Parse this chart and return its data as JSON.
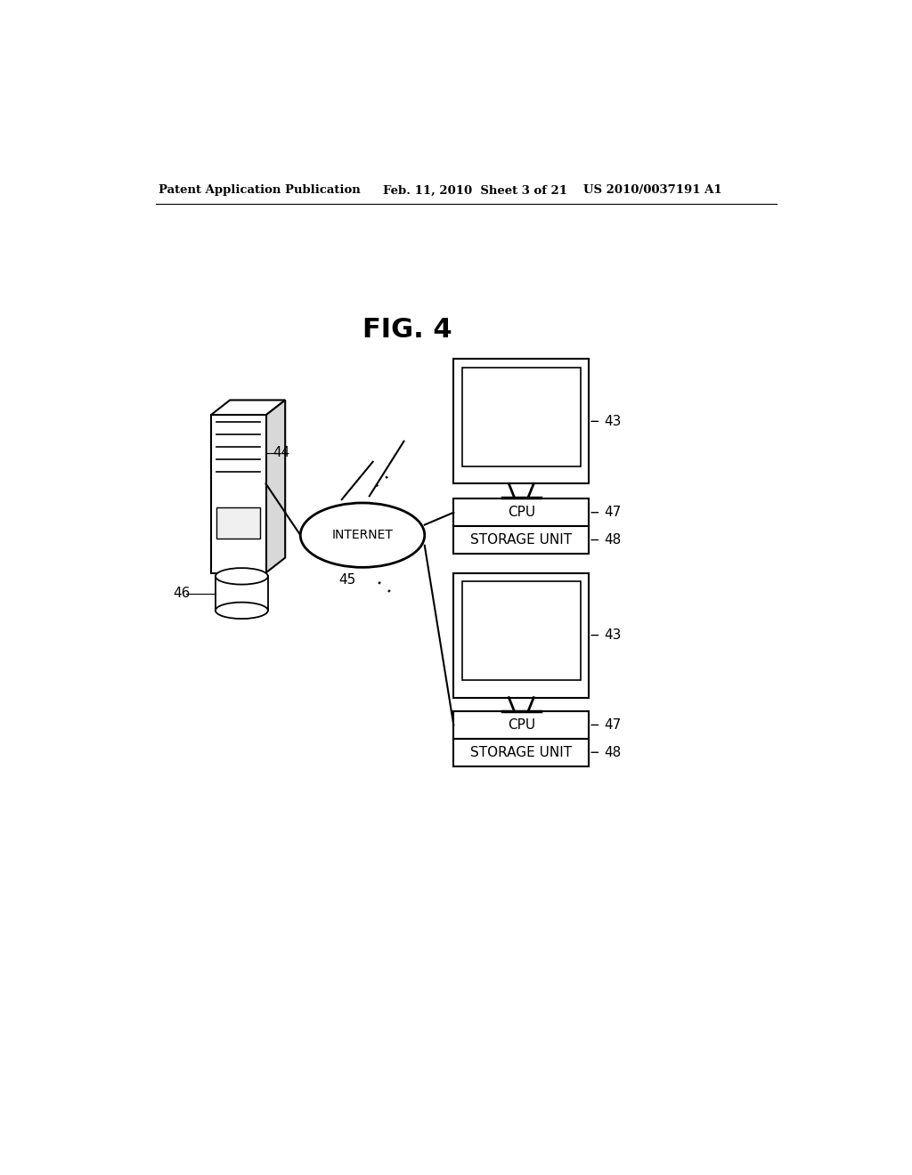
{
  "bg_color": "#ffffff",
  "header_left": "Patent Application Publication",
  "header_mid": "Feb. 11, 2010  Sheet 3 of 21",
  "header_right": "US 2010/0037191 A1",
  "fig_title": "FIG. 4",
  "internet_label": "INTERNET",
  "notes": "All coordinates in figure units 0-1, origin bottom-left. Image is 1024x1320px"
}
